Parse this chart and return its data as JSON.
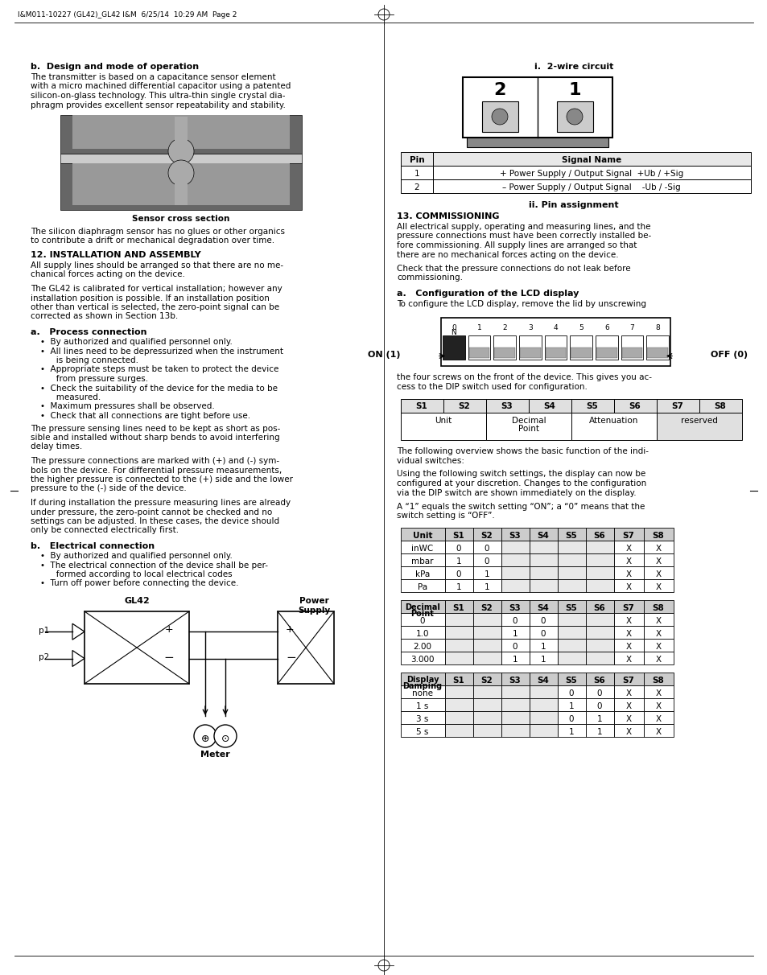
{
  "page_header": "I&M011-10227 (GL42)_GL42 I&M  6/25/14  10:29 AM  Page 2",
  "left_col": {
    "section_b_title": "b.  Design and mode of operation",
    "section_b_text1": "The transmitter is based on a capacitance sensor element\nwith a micro machined differential capacitor using a patented\nsilicon-on-glass technology. This ultra-thin single crystal dia-\nphragm provides excellent sensor repeatability and stability.",
    "sensor_caption": "Sensor cross section",
    "section_b_text2": "The silicon diaphragm sensor has no glues or other organics\nto contribute a drift or mechanical degradation over time.",
    "section12_title": "12. INSTALLATION AND ASSEMBLY",
    "section12_text1": "All supply lines should be arranged so that there are no me-\nchanical forces acting on the device.",
    "section12_text2": "The GL42 is calibrated for vertical installation; however any\ninstallation position is possible. If an installation position\nother than vertical is selected, the zero-point signal can be\ncorrected as shown in Section 13b.",
    "section_a_title": "a.   Process connection",
    "bullets": [
      "•  By authorized and qualified personnel only.",
      "•  All lines need to be depressurized when the instrument\n   is being connected.",
      "•  Appropriate steps must be taken to protect the device\n   from pressure surges.",
      "•  Check the suitability of the device for the media to be\n   measured.",
      "•  Maximum pressures shall be observed.",
      "•  Check that all connections are tight before use."
    ],
    "pressure_text1": "The pressure sensing lines need to be kept as short as pos-\nsible and installed without sharp bends to avoid interfering\ndelay times.",
    "pressure_text2": "The pressure connections are marked with (+) and (-) sym-\nbols on the device. For differential pressure measurements,\nthe higher pressure is connected to the (+) side and the lower\npressure to the (-) side of the device.",
    "pressure_text3": "If during installation the pressure measuring lines are already\nunder pressure, the zero-point cannot be checked and no\nsettings can be adjusted. In these cases, the device should\nonly be connected electrically first.",
    "section_b2_title": "b.   Electrical connection",
    "elec_bullets": [
      "•  By authorized and qualified personnel only.",
      "•  The electrical connection of the device shall be per-\n   formed according to local electrical codes",
      "•  Turn off power before connecting the device."
    ],
    "gl42_label": "GL42",
    "power_supply_label": "Power\nSupply",
    "p1_label": "p1",
    "p2_label": "p2",
    "meter_label": "Meter"
  },
  "right_col": {
    "section_i_title": "i.  2-wire circuit",
    "pin_headers": [
      "Pin",
      "Signal Name"
    ],
    "pin_rows": [
      [
        "1",
        "+ Power Supply / Output Signal  +Ub / +Sig"
      ],
      [
        "2",
        "– Power Supply / Output Signal    -Ub / -Sig"
      ]
    ],
    "section_ii_title": "ii. Pin assignment",
    "section13_title": "13. COMMISSIONING",
    "section13_text1": "All electrical supply, operating and measuring lines, and the\npressure connections must have been correctly installed be-\nfore commissioning. All supply lines are arranged so that\nthere are no mechanical forces acting on the device.",
    "section13_text2": "Check that the pressure connections do not leak before\ncommissioning.",
    "section_a2_title": "a.   Configuration of the LCD display",
    "config_text": "To configure the LCD display, remove the lid by unscrewing",
    "on_label": "ON (1)",
    "off_label": "OFF (0)",
    "screws_text": "the four screws on the front of the device. This gives you ac-\ncess to the DIP switch used for configuration.",
    "sw_top_headers": [
      "S1",
      "S2",
      "S3",
      "S4",
      "S5",
      "S6",
      "S7",
      "S8"
    ],
    "sw_merged": [
      {
        "label": "Unit",
        "span": 2
      },
      {
        "label": "Decimal\nPoint",
        "span": 2
      },
      {
        "label": "Attenuation",
        "span": 2
      },
      {
        "label": "reserved",
        "span": 2
      }
    ],
    "overview1": "The following overview shows the basic function of the indi-\nvidual switches:",
    "overview2": "Using the following switch settings, the display can now be\nconfigured at your discretion. Changes to the configuration\nvia the DIP switch are shown immediately on the display.",
    "overview3": "A “1” equals the switch setting “ON”; a “0” means that the\nswitch setting is “OFF”.",
    "unit_headers": [
      "Unit",
      "S1",
      "S2",
      "S3",
      "S4",
      "S5",
      "S6",
      "S7",
      "S8"
    ],
    "unit_rows": [
      [
        "inWC",
        "0",
        "0",
        "",
        "",
        "",
        "",
        "X",
        "X"
      ],
      [
        "mbar",
        "1",
        "0",
        "",
        "",
        "",
        "",
        "X",
        "X"
      ],
      [
        "kPa",
        "0",
        "1",
        "",
        "",
        "",
        "",
        "X",
        "X"
      ],
      [
        "Pa",
        "1",
        "1",
        "",
        "",
        "",
        "",
        "X",
        "X"
      ]
    ],
    "dec_headers": [
      "Decimal\nPoint",
      "S1",
      "S2",
      "S3",
      "S4",
      "S5",
      "S6",
      "S7",
      "S8"
    ],
    "dec_rows": [
      [
        "0",
        "",
        "",
        "0",
        "0",
        "",
        "",
        "X",
        "X"
      ],
      [
        "1.0",
        "",
        "",
        "1",
        "0",
        "",
        "",
        "X",
        "X"
      ],
      [
        "2.00",
        "",
        "",
        "0",
        "1",
        "",
        "",
        "X",
        "X"
      ],
      [
        "3.000",
        "",
        "",
        "1",
        "1",
        "",
        "",
        "X",
        "X"
      ]
    ],
    "disp_headers": [
      "Display\nDamping",
      "S1",
      "S2",
      "S3",
      "S4",
      "S5",
      "S6",
      "S7",
      "S8"
    ],
    "disp_rows": [
      [
        "none",
        "",
        "",
        "",
        "",
        "0",
        "0",
        "X",
        "X"
      ],
      [
        "1 s",
        "",
        "",
        "",
        "",
        "1",
        "0",
        "X",
        "X"
      ],
      [
        "3 s",
        "",
        "",
        "",
        "",
        "0",
        "1",
        "X",
        "X"
      ],
      [
        "5 s",
        "",
        "",
        "",
        "",
        "1",
        "1",
        "X",
        "X"
      ]
    ]
  }
}
